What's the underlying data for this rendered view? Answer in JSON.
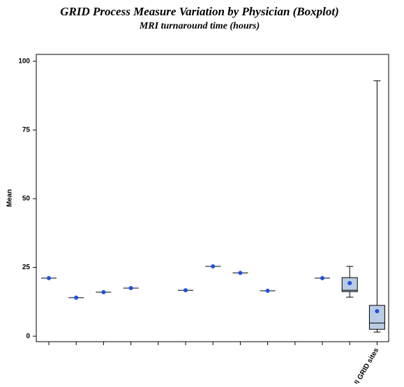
{
  "chart_data": {
    "type": "boxplot",
    "title": "GRID Process Measure Variation by Physician (Boxplot)",
    "subtitle": "MRI turnaround time (hours)",
    "y_label": "Mean",
    "categories": [
      null,
      null,
      null,
      null,
      null,
      null,
      null,
      null,
      null,
      null,
      null,
      null,
      "All GRID sites"
    ],
    "whisker_high": [
      null,
      null,
      null,
      null,
      null,
      null,
      null,
      null,
      null,
      null,
      null,
      25.4,
      92.9
    ],
    "q3": [
      null,
      null,
      null,
      null,
      null,
      null,
      null,
      null,
      null,
      null,
      null,
      21.3,
      11.2
    ],
    "median": [
      21.1,
      14,
      16,
      17.5,
      null,
      16.7,
      25.4,
      23,
      16.5,
      null,
      21.1,
      16.7,
      4.8
    ],
    "q1": [
      null,
      null,
      null,
      null,
      null,
      null,
      null,
      null,
      null,
      null,
      null,
      16.2,
      2.5
    ],
    "whisker_low": [
      null,
      null,
      null,
      null,
      null,
      null,
      null,
      null,
      null,
      null,
      null,
      14.2,
      1.5
    ],
    "mean": [
      21.1,
      14,
      16,
      17.5,
      null,
      16.7,
      25.4,
      23,
      16.5,
      null,
      21.1,
      19.3,
      9.1
    ],
    "mean_color": "#1f4fe0",
    "box_color": "#b8cce4",
    "ylim": [
      -2,
      102.5
    ],
    "yticks": [
      0,
      25,
      50,
      75,
      100
    ]
  }
}
